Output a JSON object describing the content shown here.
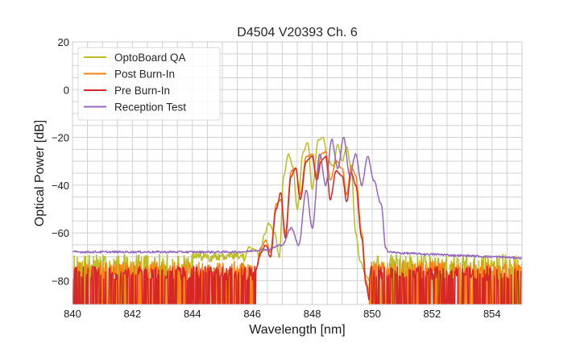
{
  "chart_data": {
    "type": "line",
    "title": "D4504 V20393 Ch. 6",
    "xlabel": "Wavelength [nm]",
    "ylabel": "Optical Power [dB]",
    "xlim": [
      840,
      855
    ],
    "ylim": [
      -90,
      20
    ],
    "xticks": [
      "840",
      "842",
      "844",
      "846",
      "848",
      "850",
      "852",
      "854"
    ],
    "xtick_values": [
      840,
      842,
      844,
      846,
      848,
      850,
      852,
      854
    ],
    "yticks": [
      "20",
      "0",
      "−20",
      "−40",
      "−60",
      "−80"
    ],
    "ytick_values": [
      20,
      0,
      -20,
      -40,
      -60,
      -80
    ],
    "grid": true,
    "legend_position": "top-left",
    "noise_floor": {
      "OptoBoard QA": -72,
      "Post Burn-In": -75,
      "Pre Burn-In": -77
    },
    "series": [
      {
        "name": "OptoBoard QA",
        "color": "#bcbd22",
        "x": [
          845.7,
          845.9,
          846.1,
          846.25,
          846.4,
          846.55,
          846.75,
          846.9,
          847.05,
          847.2,
          847.35,
          847.5,
          847.7,
          847.85,
          848.0,
          848.2,
          848.35,
          848.55,
          848.7,
          848.85,
          849.0,
          849.15,
          849.3,
          849.45,
          849.6,
          849.8,
          850.0
        ],
        "y": [
          -72,
          -66,
          -67,
          -70,
          -61,
          -56,
          -60,
          -70,
          -36,
          -27,
          -32,
          -50,
          -26,
          -22,
          -42,
          -21,
          -20,
          -30,
          -32,
          -23,
          -30,
          -24,
          -33,
          -60,
          -72,
          -78,
          -82
        ]
      },
      {
        "name": "Post Burn-In",
        "color": "#ff7f0e",
        "x": [
          846.1,
          846.3,
          846.45,
          846.6,
          846.8,
          846.95,
          847.1,
          847.3,
          847.45,
          847.6,
          847.8,
          848.0,
          848.15,
          848.3,
          848.45,
          848.6,
          848.8,
          849.0,
          849.15,
          849.3,
          849.45,
          849.65,
          849.8,
          849.9
        ],
        "y": [
          -76,
          -66,
          -63,
          -68,
          -48,
          -46,
          -60,
          -34,
          -33,
          -44,
          -28,
          -27,
          -36,
          -27,
          -26,
          -38,
          -30,
          -33,
          -44,
          -32,
          -36,
          -60,
          -80,
          -85
        ]
      },
      {
        "name": "Pre Burn-In",
        "color": "#d62728",
        "x": [
          846.1,
          846.3,
          846.45,
          846.6,
          846.8,
          846.95,
          847.1,
          847.3,
          847.45,
          847.6,
          847.8,
          848.0,
          848.15,
          848.3,
          848.45,
          848.6,
          848.8,
          849.0,
          849.15,
          849.3,
          849.45,
          849.65,
          849.8,
          849.9
        ],
        "y": [
          -76,
          -68,
          -65,
          -70,
          -50,
          -43,
          -62,
          -36,
          -33,
          -46,
          -30,
          -28,
          -38,
          -30,
          -28,
          -46,
          -34,
          -36,
          -47,
          -35,
          -40,
          -62,
          -82,
          -88
        ]
      },
      {
        "name": "Reception Test",
        "color": "#9467bd",
        "x": [
          840.0,
          843.0,
          845.5,
          846.5,
          847.0,
          847.3,
          847.55,
          847.8,
          848.0,
          848.25,
          848.45,
          848.65,
          848.85,
          849.05,
          849.25,
          849.45,
          849.65,
          849.85,
          850.05,
          850.3,
          850.45,
          850.55,
          851.0,
          852.0,
          853.0,
          854.0,
          855.0
        ],
        "y": [
          -68,
          -68,
          -68,
          -67,
          -65,
          -58,
          -65,
          -42,
          -58,
          -27,
          -40,
          -21,
          -33,
          -20,
          -36,
          -27,
          -40,
          -28,
          -38,
          -48,
          -66,
          -68,
          -68.5,
          -69,
          -69.5,
          -70,
          -70.5
        ]
      }
    ]
  }
}
